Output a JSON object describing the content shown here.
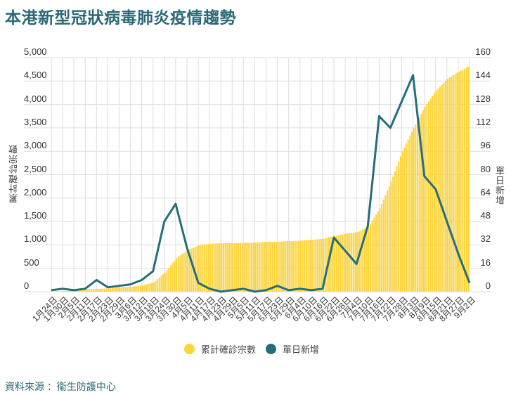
{
  "title": "本港新型冠狀病毒肺炎疫情趨勢",
  "source": "資料來源 ：衞生防護中心",
  "colors": {
    "title": "#2a6878",
    "cumulative": "#fdd43a",
    "daily": "#266d7c",
    "grid": "#dddddd"
  },
  "legend": {
    "cumulative": "累計確診宗數",
    "daily": "單日新增"
  },
  "axes": {
    "left_label": "累計確診宗數",
    "right_label": "單日新增",
    "left_ticks": [
      "5,000",
      "4,500",
      "4,000",
      "3,500",
      "3,000",
      "2,500",
      "2,000",
      "1,500",
      "1,000",
      "500",
      "0"
    ],
    "right_ticks": [
      "160",
      "144",
      "128",
      "112",
      "96",
      "80",
      "64",
      "48",
      "32",
      "16",
      "0"
    ]
  },
  "chart_data": {
    "type": "bar+line",
    "title": "本港新型冠狀病毒肺炎疫情趨勢",
    "xlabel": "",
    "ylabel": "累計確診宗數",
    "y2label": "單日新增",
    "ylim": [
      0,
      5000
    ],
    "y2lim": [
      0,
      160
    ],
    "grid": true,
    "legend_position": "bottom",
    "categories": [
      "1月24日",
      "1月30日",
      "2月5日",
      "2月11日",
      "2月17日",
      "2月23日",
      "2月29日",
      "3月6日",
      "3月12日",
      "3月18日",
      "3月24日",
      "3月30日",
      "4月5日",
      "4月11日",
      "4月17日",
      "4月23日",
      "4月29日",
      "5月5日",
      "5月11日",
      "5月17日",
      "5月23日",
      "5月29日",
      "6月4日",
      "6月10日",
      "6月16日",
      "6月22日",
      "6月28日",
      "7月4日",
      "7月10日",
      "7月16日",
      "7月22日",
      "7月28日",
      "8月3日",
      "8月9日",
      "8月15日",
      "8月21日",
      "8月27日",
      "9月2日"
    ],
    "series": [
      {
        "name": "累計確診宗數",
        "type": "bar",
        "axis": "left",
        "values": [
          2,
          12,
          24,
          50,
          60,
          70,
          95,
          105,
          135,
          200,
          410,
          715,
          890,
          990,
          1025,
          1035,
          1038,
          1040,
          1050,
          1065,
          1068,
          1080,
          1090,
          1108,
          1130,
          1190,
          1240,
          1270,
          1390,
          1780,
          2350,
          3000,
          3500,
          3950,
          4300,
          4550,
          4700,
          4830
        ]
      },
      {
        "name": "單日新增",
        "type": "line",
        "axis": "right",
        "values": [
          1,
          2,
          1,
          2,
          8,
          3,
          4,
          5,
          8,
          14,
          48,
          60,
          30,
          6,
          2,
          0,
          1,
          2,
          0,
          1,
          4,
          1,
          2,
          1,
          2,
          37,
          28,
          19,
          45,
          120,
          112,
          130,
          148,
          79,
          70,
          48,
          26,
          6
        ]
      }
    ]
  }
}
